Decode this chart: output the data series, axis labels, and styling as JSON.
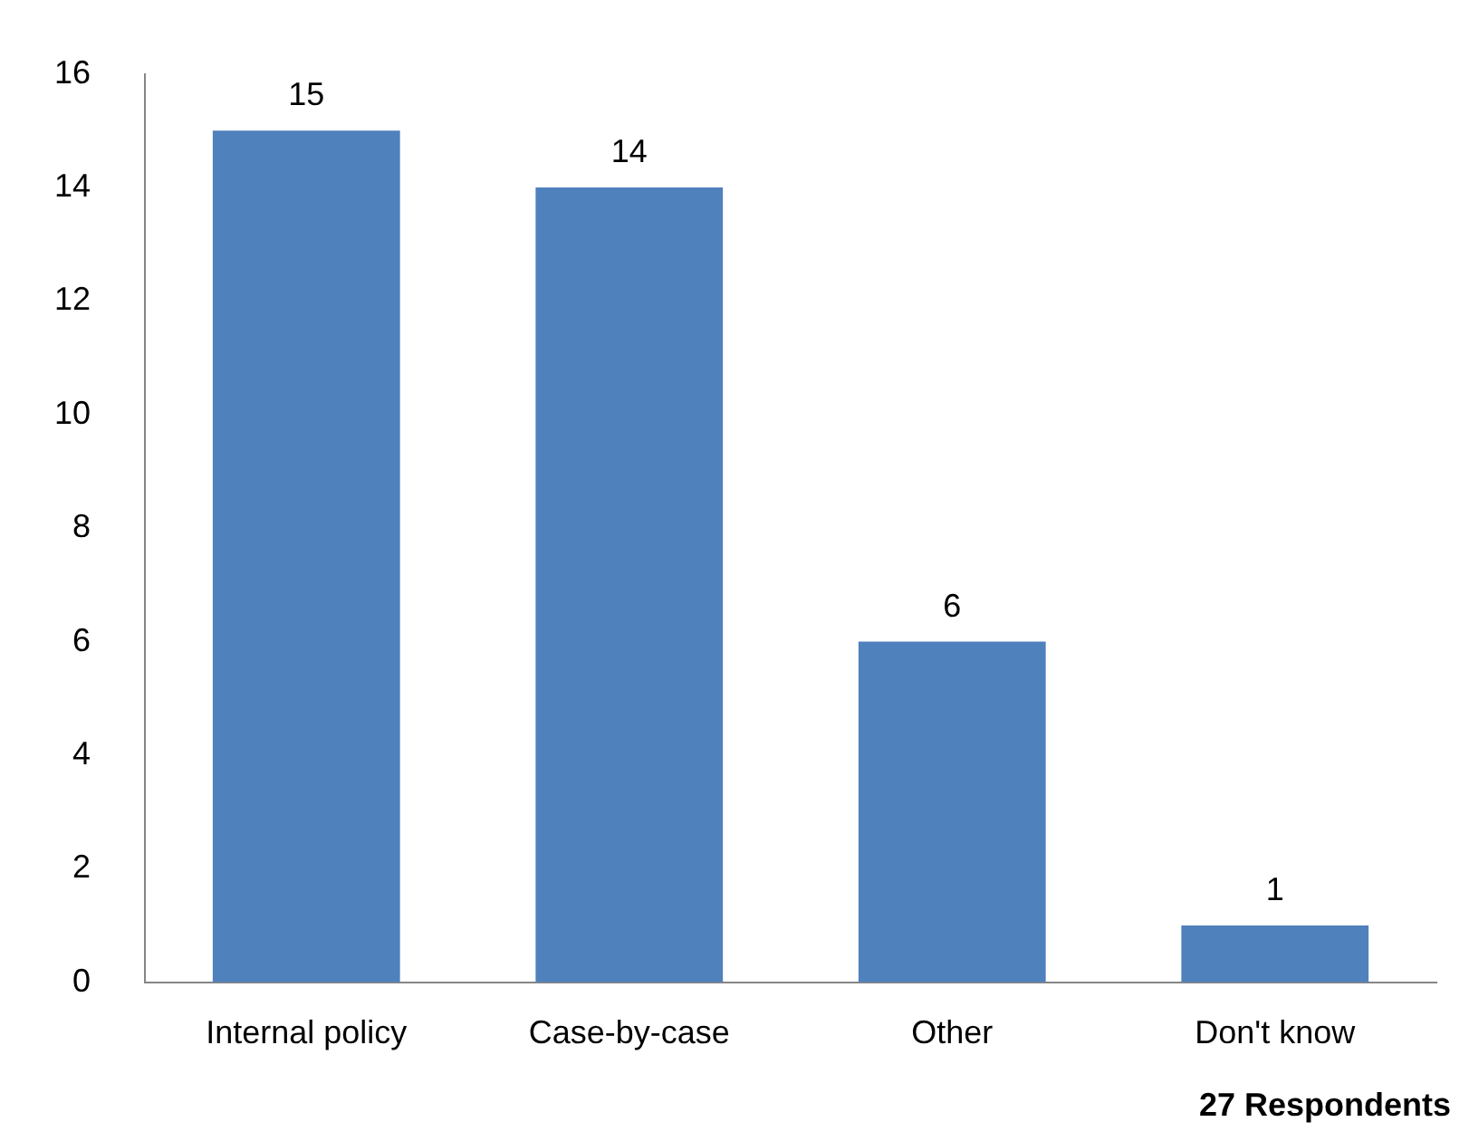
{
  "chart_data": {
    "type": "bar",
    "categories": [
      "Internal policy",
      "Case-by-case",
      "Other",
      "Don't know"
    ],
    "values": [
      15,
      14,
      6,
      1
    ],
    "color": "#4f81bd",
    "ylim": [
      0,
      16
    ],
    "yticks": [
      0,
      2,
      4,
      6,
      8,
      10,
      12,
      14,
      16
    ],
    "grid": false,
    "legend": false,
    "data_labels": true,
    "annotations": [
      "27 Respondents"
    ]
  }
}
